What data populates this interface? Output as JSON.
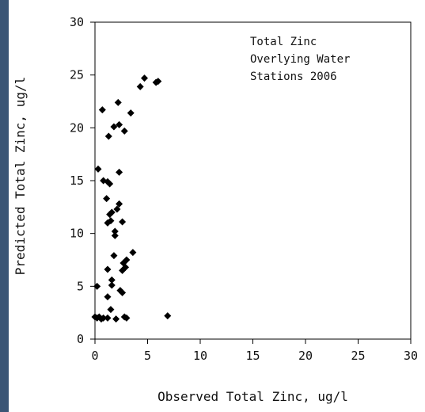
{
  "chart_data": {
    "type": "scatter",
    "xlabel": "Observed Total Zinc, ug/l",
    "ylabel": "Predicted Total Zinc, ug/l",
    "xlim": [
      0,
      30
    ],
    "ylim": [
      0,
      30
    ],
    "x_ticks": [
      "0",
      "5",
      "10",
      "15",
      "20",
      "25",
      "30"
    ],
    "y_ticks": [
      "0",
      "5",
      "10",
      "15",
      "20",
      "25",
      "30"
    ],
    "grid": false,
    "annotation": [
      "Total Zinc",
      "Overlying Water",
      "Stations 2006"
    ],
    "marker_color": "#000000",
    "points": [
      {
        "x": 0.0,
        "y": 2.1
      },
      {
        "x": 0.2,
        "y": 2.0
      },
      {
        "x": 0.4,
        "y": 2.1
      },
      {
        "x": 0.6,
        "y": 1.9
      },
      {
        "x": 0.8,
        "y": 2.0
      },
      {
        "x": 1.2,
        "y": 2.0
      },
      {
        "x": 2.0,
        "y": 1.9
      },
      {
        "x": 2.8,
        "y": 2.1
      },
      {
        "x": 3.0,
        "y": 2.0
      },
      {
        "x": 6.9,
        "y": 2.2
      },
      {
        "x": 1.5,
        "y": 2.8
      },
      {
        "x": 0.2,
        "y": 5.0
      },
      {
        "x": 1.2,
        "y": 4.0
      },
      {
        "x": 1.6,
        "y": 5.1
      },
      {
        "x": 1.6,
        "y": 5.6
      },
      {
        "x": 2.6,
        "y": 4.4
      },
      {
        "x": 2.4,
        "y": 4.6
      },
      {
        "x": 1.2,
        "y": 6.6
      },
      {
        "x": 2.6,
        "y": 6.5
      },
      {
        "x": 2.7,
        "y": 7.2
      },
      {
        "x": 2.9,
        "y": 6.8
      },
      {
        "x": 3.0,
        "y": 7.5
      },
      {
        "x": 1.8,
        "y": 7.9
      },
      {
        "x": 3.6,
        "y": 8.2
      },
      {
        "x": 1.9,
        "y": 9.8
      },
      {
        "x": 1.9,
        "y": 10.2
      },
      {
        "x": 1.2,
        "y": 11.0
      },
      {
        "x": 1.5,
        "y": 11.2
      },
      {
        "x": 2.6,
        "y": 11.1
      },
      {
        "x": 1.4,
        "y": 11.8
      },
      {
        "x": 1.6,
        "y": 12.0
      },
      {
        "x": 2.1,
        "y": 12.3
      },
      {
        "x": 2.3,
        "y": 12.8
      },
      {
        "x": 1.1,
        "y": 13.3
      },
      {
        "x": 0.8,
        "y": 15.0
      },
      {
        "x": 1.2,
        "y": 14.9
      },
      {
        "x": 1.4,
        "y": 14.7
      },
      {
        "x": 0.3,
        "y": 16.1
      },
      {
        "x": 2.3,
        "y": 15.8
      },
      {
        "x": 1.3,
        "y": 19.2
      },
      {
        "x": 1.8,
        "y": 20.1
      },
      {
        "x": 2.3,
        "y": 20.3
      },
      {
        "x": 2.8,
        "y": 19.7
      },
      {
        "x": 3.4,
        "y": 21.4
      },
      {
        "x": 0.7,
        "y": 21.7
      },
      {
        "x": 2.2,
        "y": 22.4
      },
      {
        "x": 4.3,
        "y": 23.9
      },
      {
        "x": 4.7,
        "y": 24.7
      },
      {
        "x": 5.8,
        "y": 24.3
      },
      {
        "x": 6.0,
        "y": 24.4
      }
    ]
  }
}
